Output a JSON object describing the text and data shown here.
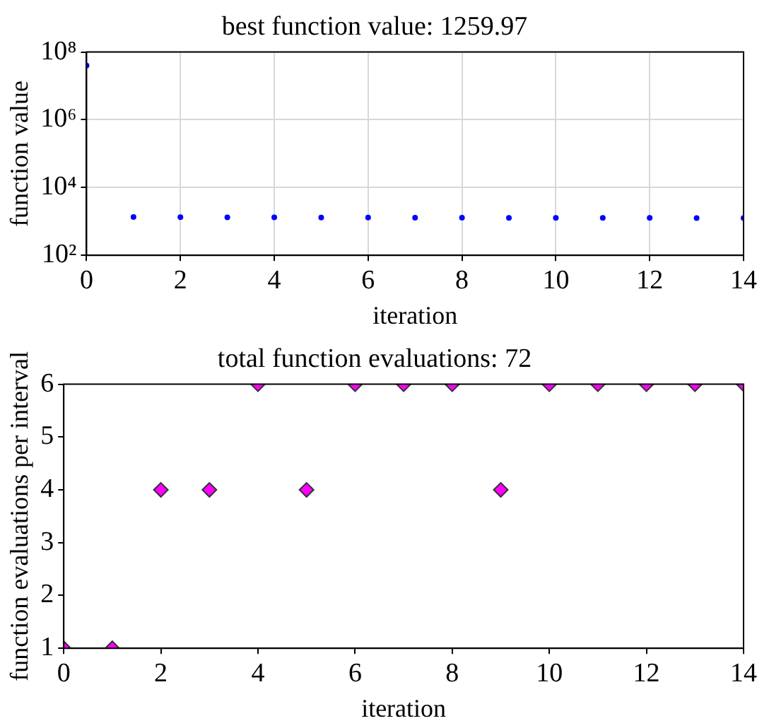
{
  "chart_data": [
    {
      "type": "scatter",
      "title": "best function value: 1259.97",
      "xlabel": "iteration",
      "ylabel": "function value",
      "x": [
        0,
        1,
        2,
        3,
        4,
        5,
        6,
        7,
        8,
        9,
        10,
        11,
        12,
        13,
        14
      ],
      "series": [
        {
          "color": "#0000ff",
          "values": [
            40000000,
            1350,
            1340,
            1320,
            1320,
            1300,
            1300,
            1290,
            1290,
            1280,
            1280,
            1270,
            1270,
            1260,
            1260
          ]
        }
      ],
      "log": "y",
      "xlim": [
        0,
        14
      ],
      "xticks": [
        0,
        2,
        4,
        6,
        8,
        10,
        12,
        14
      ],
      "ylim": [
        100,
        100000000
      ],
      "yticks": [
        {
          "value": 100,
          "label": "10²"
        },
        {
          "value": 10000,
          "label": "10⁴"
        },
        {
          "value": 1000000,
          "label": "10⁶"
        },
        {
          "value": 100000000,
          "label": "10⁸"
        }
      ],
      "grid": true,
      "marker": "circle",
      "legend": false
    },
    {
      "type": "scatter",
      "title": "total function evaluations: 72",
      "xlabel": "iteration",
      "ylabel": "function evaluations per interval",
      "x": [
        0,
        1,
        2,
        3,
        4,
        5,
        6,
        7,
        8,
        9,
        10,
        11,
        12,
        13,
        14
      ],
      "series": [
        {
          "color": "#ff00ff",
          "values": [
            1,
            1,
            4,
            4,
            6,
            4,
            6,
            6,
            6,
            4,
            6,
            6,
            6,
            6,
            6
          ]
        }
      ],
      "xlim": [
        0,
        14
      ],
      "xticks": [
        0,
        2,
        4,
        6,
        8,
        10,
        12,
        14
      ],
      "ylim": [
        1,
        6
      ],
      "yticks": [
        1,
        2,
        3,
        4,
        5,
        6
      ],
      "grid": false,
      "marker": "diamond",
      "legend": false
    }
  ]
}
